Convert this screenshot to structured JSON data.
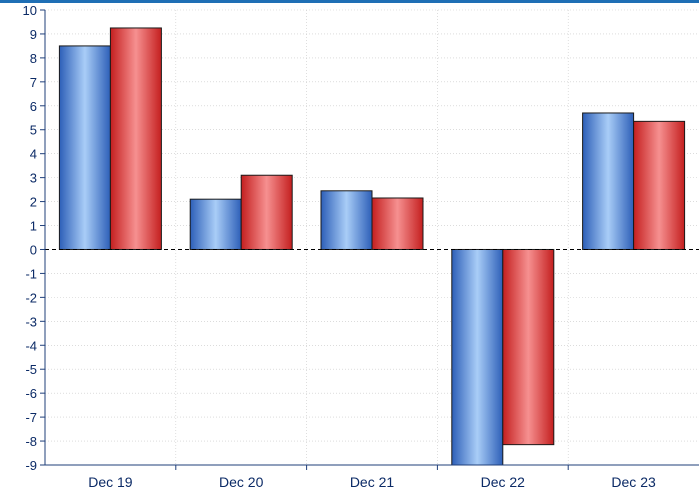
{
  "colors": {
    "background": "#ffffff",
    "frame": "#1f6fb5",
    "axis": "#1f3f7a",
    "tick_label": "#0b2a66",
    "grid": "#c8c8c8",
    "zero_line": "#000000",
    "series_blue": "#4f86d9",
    "series_red": "#d83a3a"
  },
  "chart_data": {
    "type": "bar",
    "title": "",
    "xlabel": "",
    "ylabel": "",
    "categories": [
      "Dec 19",
      "Dec 20",
      "Dec 21",
      "Dec 22",
      "Dec 23"
    ],
    "series": [
      {
        "values": [
          8.5,
          2.1,
          2.45,
          -9.0,
          5.7
        ]
      },
      {
        "values": [
          9.25,
          3.1,
          2.15,
          -8.15,
          5.35
        ]
      }
    ],
    "ylim": [
      -9,
      10
    ],
    "yticks": [
      10,
      9,
      8,
      7,
      6,
      5,
      4,
      3,
      2,
      1,
      0,
      -1,
      -2,
      -3,
      -4,
      -5,
      -6,
      -7,
      -8,
      -9
    ],
    "grid": true,
    "legend": "none"
  }
}
